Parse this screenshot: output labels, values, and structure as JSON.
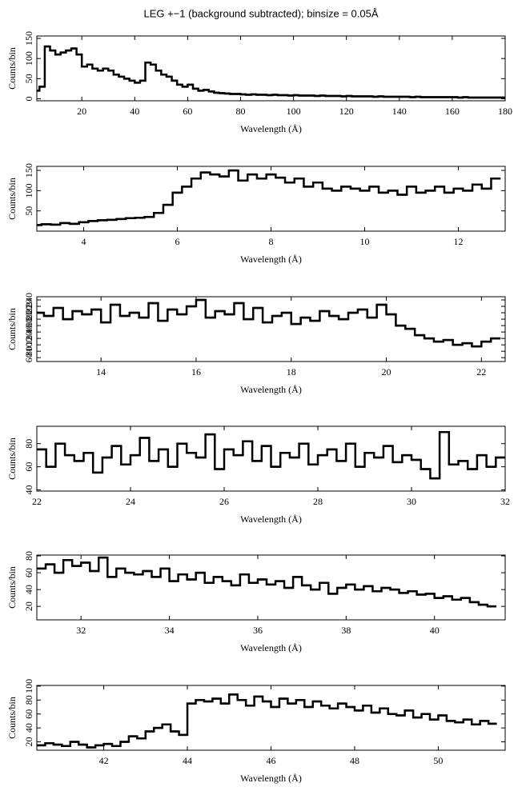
{
  "title": "LEG +−1 (background subtracted); binsize = 0.05Å",
  "chart_data": [
    {
      "type": "step",
      "xlabel": "Wavelength (Å)",
      "ylabel": "Counts/bin",
      "color": "#000000",
      "xlim": [
        3,
        180
      ],
      "ylim": [
        -5,
        156
      ],
      "xticks": [
        20,
        40,
        60,
        80,
        100,
        120,
        140,
        160,
        180
      ],
      "yticks": [
        0,
        50,
        100,
        150
      ],
      "x": [
        3,
        5,
        7,
        9,
        11,
        13,
        15,
        17,
        19,
        21,
        23,
        25,
        27,
        29,
        31,
        33,
        35,
        37,
        39,
        41,
        43,
        45,
        47,
        49,
        51,
        53,
        55,
        57,
        59,
        61,
        63,
        65,
        67,
        69,
        71,
        73,
        75,
        77,
        79,
        81,
        83,
        85,
        87,
        89,
        91,
        93,
        95,
        97,
        99,
        101,
        103,
        105,
        107,
        109,
        111,
        113,
        115,
        117,
        119,
        121,
        123,
        125,
        127,
        129,
        131,
        133,
        135,
        137,
        139,
        141,
        143,
        145,
        147,
        149,
        151,
        153,
        155,
        157,
        159,
        161,
        163,
        165,
        167,
        169,
        171,
        173,
        175,
        177,
        179
      ],
      "values": [
        20,
        30,
        130,
        120,
        110,
        115,
        120,
        125,
        110,
        80,
        85,
        75,
        70,
        75,
        70,
        60,
        55,
        50,
        45,
        40,
        45,
        90,
        85,
        70,
        60,
        55,
        45,
        35,
        30,
        35,
        25,
        20,
        22,
        18,
        15,
        14,
        13,
        12,
        12,
        11,
        10,
        11,
        10,
        10,
        9,
        10,
        9,
        9,
        8,
        9,
        8,
        8,
        8,
        7,
        8,
        7,
        7,
        7,
        6,
        7,
        6,
        6,
        6,
        6,
        5,
        6,
        5,
        5,
        5,
        5,
        5,
        4,
        5,
        4,
        4,
        4,
        4,
        4,
        4,
        4,
        3,
        4,
        3,
        3,
        3,
        3,
        3,
        3,
        3
      ]
    },
    {
      "type": "step",
      "xlabel": "Wavelength (Å)",
      "ylabel": "Counts/bin",
      "color": "#000000",
      "xlim": [
        3,
        13
      ],
      "ylim": [
        0,
        160
      ],
      "xticks": [
        4,
        6,
        8,
        10,
        12
      ],
      "yticks": [
        50,
        100,
        150
      ],
      "x": [
        3.0,
        3.2,
        3.4,
        3.6,
        3.8,
        4.0,
        4.2,
        4.4,
        4.6,
        4.8,
        5.0,
        5.2,
        5.4,
        5.6,
        5.8,
        6.0,
        6.2,
        6.4,
        6.6,
        6.8,
        7.0,
        7.2,
        7.4,
        7.6,
        7.8,
        8.0,
        8.2,
        8.4,
        8.6,
        8.8,
        9.0,
        9.2,
        9.4,
        9.6,
        9.8,
        10.0,
        10.2,
        10.4,
        10.6,
        10.8,
        11.0,
        11.2,
        11.4,
        11.6,
        11.8,
        12.0,
        12.2,
        12.4,
        12.6,
        12.8
      ],
      "values": [
        15,
        17,
        16,
        20,
        18,
        22,
        25,
        27,
        28,
        30,
        32,
        33,
        35,
        45,
        65,
        95,
        110,
        130,
        145,
        140,
        135,
        150,
        125,
        140,
        130,
        140,
        132,
        120,
        130,
        110,
        120,
        105,
        100,
        110,
        105,
        100,
        110,
        95,
        100,
        90,
        110,
        95,
        100,
        110,
        95,
        105,
        100,
        115,
        105,
        130
      ]
    },
    {
      "type": "step",
      "xlabel": "Wavelength (Å)",
      "ylabel": "Counts/bin",
      "color": "#000000",
      "xlim": [
        12.65,
        22.5
      ],
      "ylim": [
        48,
        250
      ],
      "xticks": [
        14,
        16,
        18,
        20,
        22
      ],
      "yticks": [
        60,
        80,
        100,
        120,
        140,
        160,
        180,
        200,
        220,
        240
      ],
      "x": [
        12.7,
        12.9,
        13.1,
        13.3,
        13.5,
        13.7,
        13.9,
        14.1,
        14.3,
        14.5,
        14.7,
        14.9,
        15.1,
        15.3,
        15.5,
        15.7,
        15.9,
        16.1,
        16.3,
        16.5,
        16.7,
        16.9,
        17.1,
        17.3,
        17.5,
        17.7,
        17.9,
        18.1,
        18.3,
        18.5,
        18.7,
        18.9,
        19.1,
        19.3,
        19.5,
        19.7,
        19.9,
        20.1,
        20.3,
        20.5,
        20.7,
        20.9,
        21.1,
        21.3,
        21.5,
        21.7,
        21.9,
        22.1,
        22.3
      ],
      "values": [
        200,
        190,
        215,
        180,
        205,
        195,
        210,
        170,
        225,
        190,
        200,
        185,
        230,
        175,
        210,
        195,
        220,
        240,
        185,
        205,
        195,
        230,
        180,
        215,
        170,
        190,
        200,
        165,
        185,
        175,
        205,
        190,
        180,
        200,
        210,
        185,
        225,
        195,
        160,
        150,
        130,
        120,
        110,
        115,
        100,
        105,
        95,
        110,
        120
      ]
    },
    {
      "type": "step",
      "xlabel": "Wavelength (Å)",
      "ylabel": "Counts/bin",
      "color": "#000000",
      "xlim": [
        22,
        32
      ],
      "ylim": [
        39,
        95
      ],
      "xticks": [
        22,
        24,
        26,
        28,
        30,
        32
      ],
      "yticks": [
        40,
        60,
        80
      ],
      "x": [
        22.1,
        22.3,
        22.5,
        22.7,
        22.9,
        23.1,
        23.3,
        23.5,
        23.7,
        23.9,
        24.1,
        24.3,
        24.5,
        24.7,
        24.9,
        25.1,
        25.3,
        25.5,
        25.7,
        25.9,
        26.1,
        26.3,
        26.5,
        26.7,
        26.9,
        27.1,
        27.3,
        27.5,
        27.7,
        27.9,
        28.1,
        28.3,
        28.5,
        28.7,
        28.9,
        29.1,
        29.3,
        29.5,
        29.7,
        29.9,
        30.1,
        30.3,
        30.5,
        30.7,
        30.9,
        31.1,
        31.3,
        31.5,
        31.7,
        31.9
      ],
      "values": [
        75,
        60,
        80,
        70,
        65,
        72,
        55,
        68,
        78,
        62,
        70,
        85,
        65,
        75,
        60,
        80,
        72,
        68,
        88,
        58,
        75,
        70,
        82,
        65,
        78,
        60,
        72,
        68,
        80,
        62,
        70,
        75,
        65,
        80,
        60,
        72,
        68,
        78,
        64,
        70,
        66,
        58,
        50,
        90,
        62,
        65,
        58,
        70,
        60,
        68
      ]
    },
    {
      "type": "step",
      "xlabel": "Wavelength (Å)",
      "ylabel": "Counts/bin",
      "color": "#000000",
      "xlim": [
        31,
        41.6
      ],
      "ylim": [
        4,
        81
      ],
      "xticks": [
        32,
        34,
        36,
        38,
        40
      ],
      "yticks": [
        20,
        40,
        60,
        80
      ],
      "x": [
        31.1,
        31.3,
        31.5,
        31.7,
        31.9,
        32.1,
        32.3,
        32.5,
        32.7,
        32.9,
        33.1,
        33.3,
        33.5,
        33.7,
        33.9,
        34.1,
        34.3,
        34.5,
        34.7,
        34.9,
        35.1,
        35.3,
        35.5,
        35.7,
        35.9,
        36.1,
        36.3,
        36.5,
        36.7,
        36.9,
        37.1,
        37.3,
        37.5,
        37.7,
        37.9,
        38.1,
        38.3,
        38.5,
        38.7,
        38.9,
        39.1,
        39.3,
        39.5,
        39.7,
        39.9,
        40.1,
        40.3,
        40.5,
        40.7,
        40.9,
        41.1,
        41.3
      ],
      "values": [
        65,
        70,
        60,
        75,
        68,
        72,
        62,
        78,
        55,
        65,
        60,
        58,
        62,
        55,
        65,
        50,
        58,
        52,
        60,
        48,
        55,
        50,
        45,
        58,
        48,
        52,
        46,
        50,
        42,
        55,
        45,
        40,
        48,
        35,
        42,
        46,
        40,
        44,
        38,
        42,
        40,
        36,
        38,
        34,
        35,
        30,
        32,
        28,
        30,
        25,
        22,
        20
      ]
    },
    {
      "type": "step",
      "xlabel": "Wavelength (Å)",
      "ylabel": "Counts/bin",
      "color": "#000000",
      "xlim": [
        40.4,
        51.6
      ],
      "ylim": [
        8,
        101
      ],
      "xticks": [
        42,
        44,
        46,
        48,
        50
      ],
      "yticks": [
        20,
        40,
        60,
        80,
        100
      ],
      "x": [
        40.5,
        40.7,
        40.9,
        41.1,
        41.3,
        41.5,
        41.7,
        41.9,
        42.1,
        42.3,
        42.5,
        42.7,
        42.9,
        43.1,
        43.3,
        43.5,
        43.7,
        43.9,
        44.1,
        44.3,
        44.5,
        44.7,
        44.9,
        45.1,
        45.3,
        45.5,
        45.7,
        45.9,
        46.1,
        46.3,
        46.5,
        46.7,
        46.9,
        47.1,
        47.3,
        47.5,
        47.7,
        47.9,
        48.1,
        48.3,
        48.5,
        48.7,
        48.9,
        49.1,
        49.3,
        49.5,
        49.7,
        49.9,
        50.1,
        50.3,
        50.5,
        50.7,
        50.9,
        51.1,
        51.3
      ],
      "values": [
        15,
        18,
        16,
        14,
        20,
        16,
        12,
        15,
        17,
        14,
        20,
        28,
        25,
        35,
        40,
        45,
        35,
        30,
        75,
        80,
        78,
        82,
        75,
        88,
        80,
        72,
        85,
        78,
        70,
        82,
        75,
        80,
        70,
        78,
        72,
        68,
        75,
        70,
        65,
        72,
        62,
        68,
        60,
        58,
        65,
        55,
        60,
        52,
        58,
        50,
        48,
        52,
        45,
        50,
        46
      ]
    }
  ]
}
